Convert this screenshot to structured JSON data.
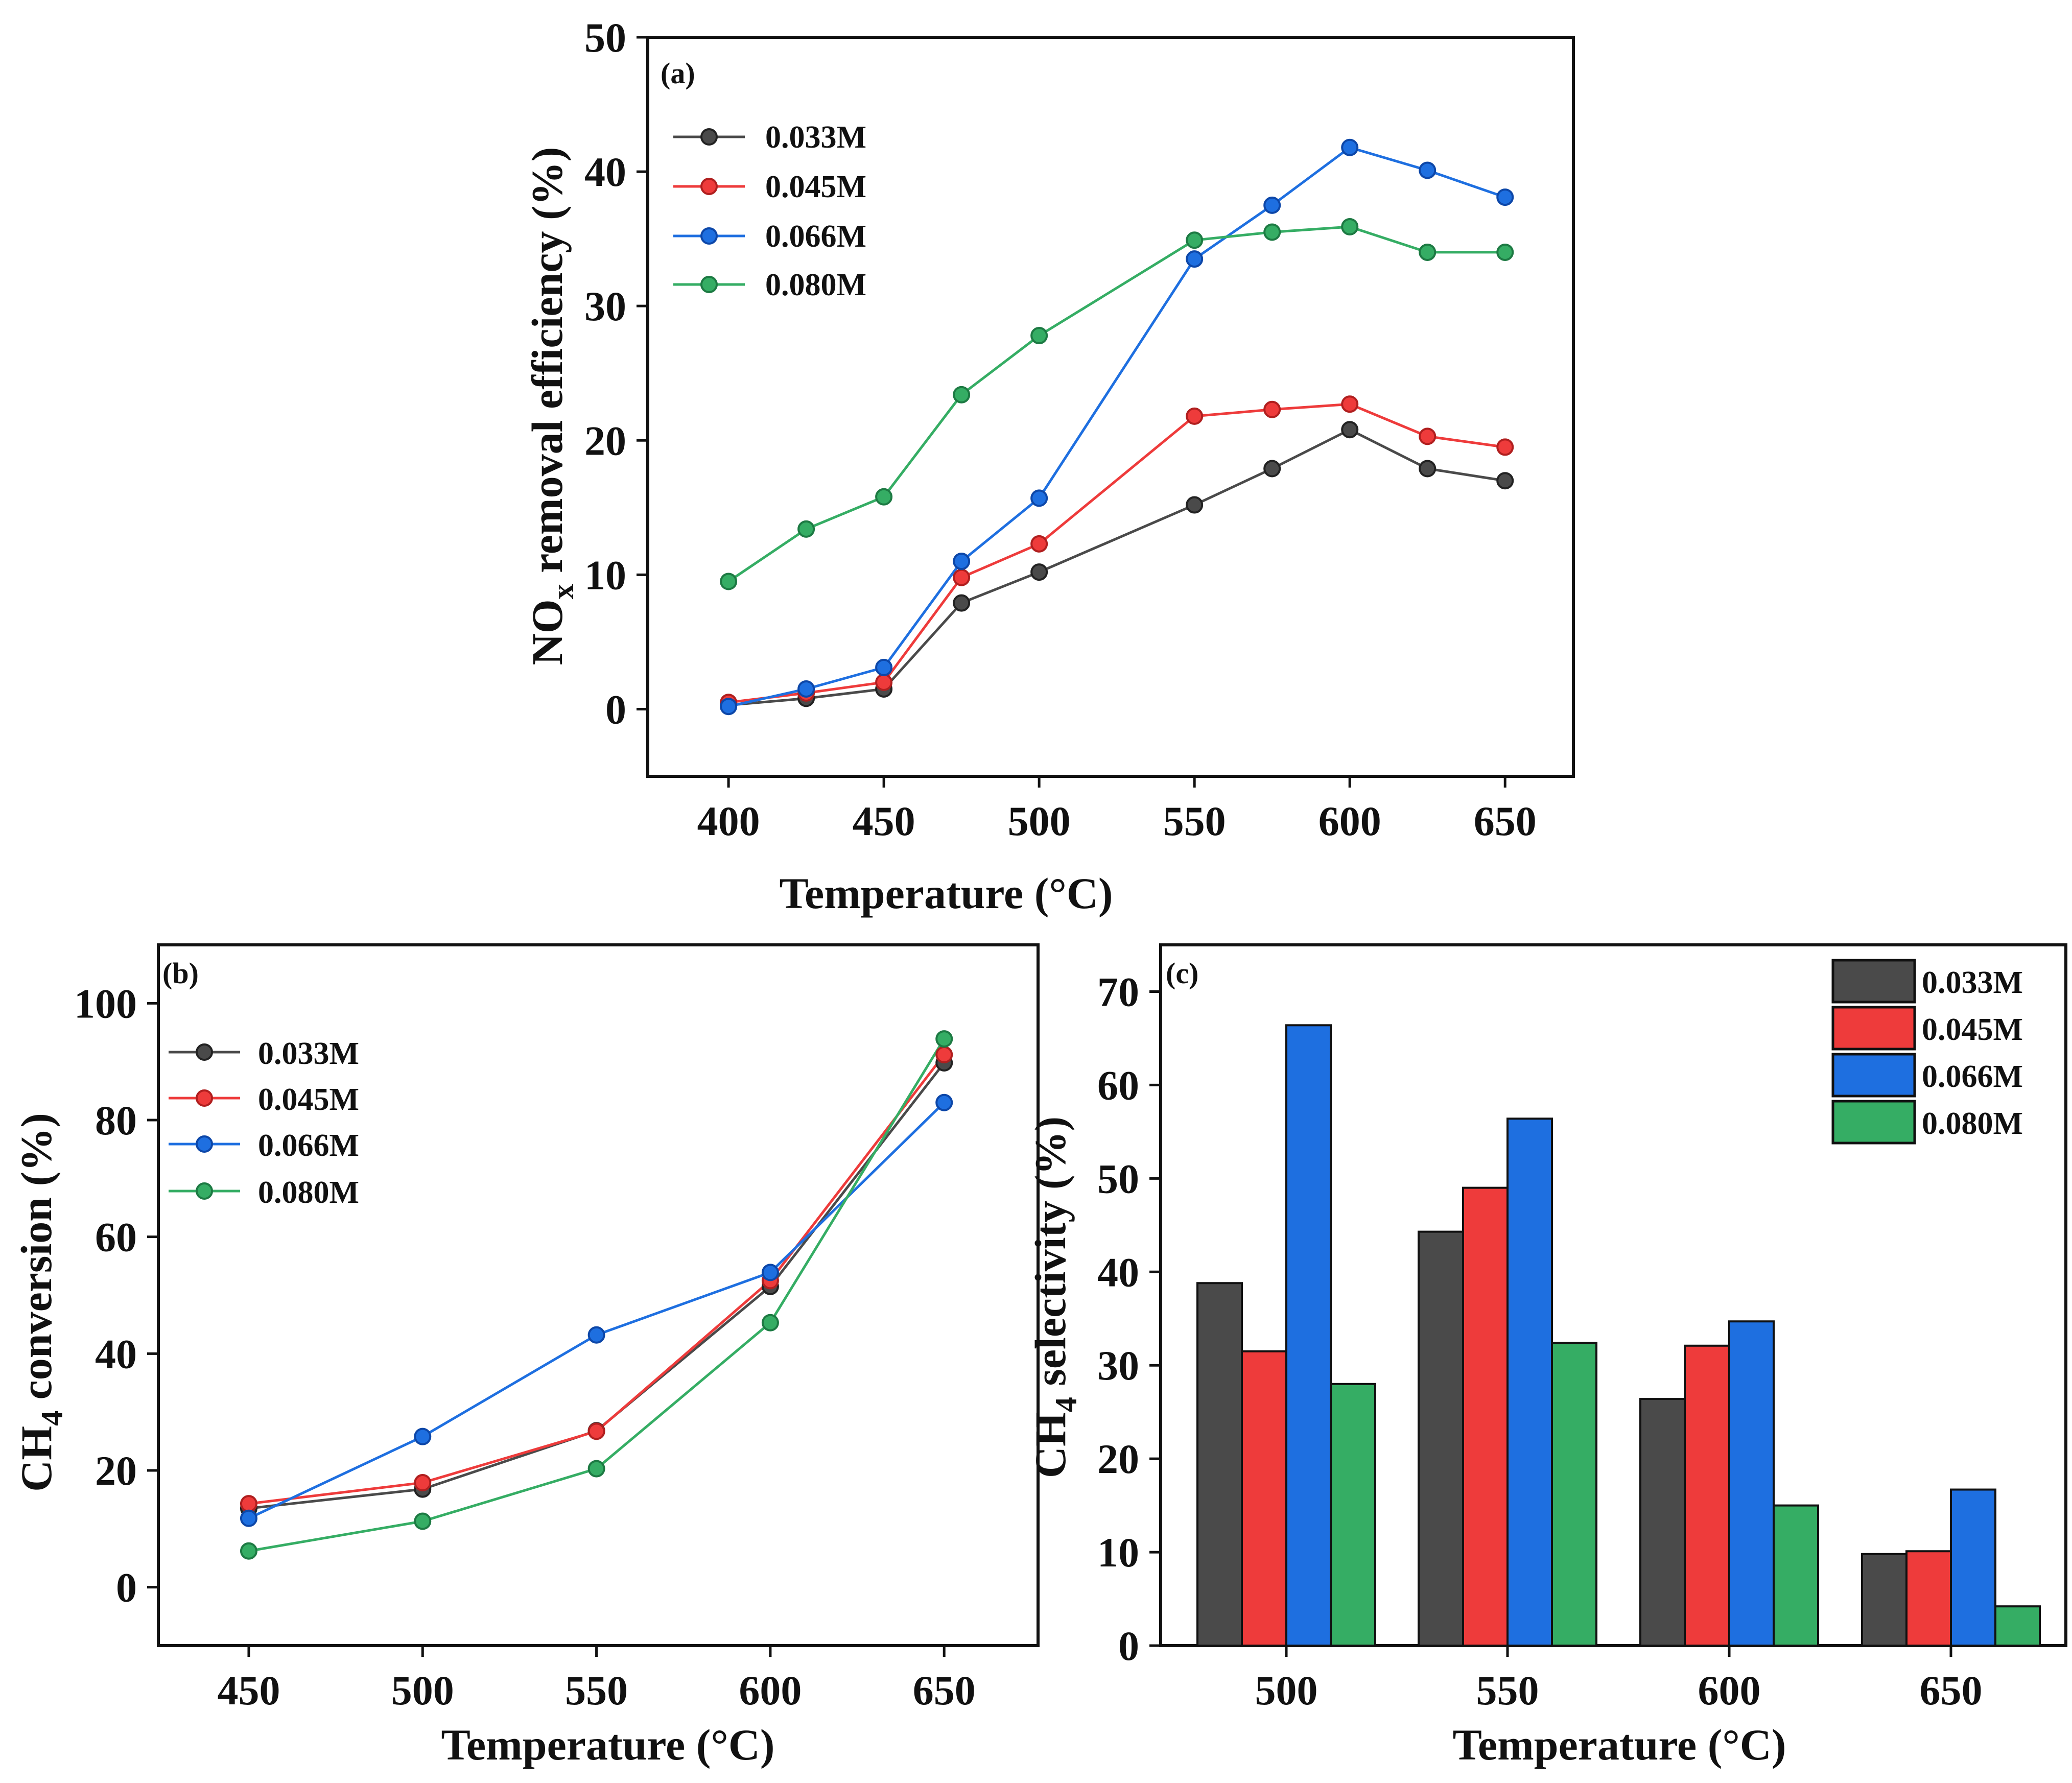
{
  "colors": {
    "0.033M": "#4a4a4a",
    "0.045M": "#ee3b3b",
    "0.066M": "#1e6fe0",
    "0.080M": "#35ad64",
    "axis": "#111111",
    "marker_edge_033": "#222222",
    "marker_edge_045": "#b01f1f",
    "marker_edge_066": "#0d47a8",
    "marker_edge_080": "#1d7a43"
  },
  "chart_data": [
    {
      "id": "a",
      "label": "(a)",
      "type": "line",
      "xlabel": "Temperature (°C)",
      "ylabel_main": "NO",
      "ylabel_sub": "x",
      "ylabel_rest": " removal efficiency (%)",
      "xlim": [
        374,
        672
      ],
      "ylim": [
        -5,
        50
      ],
      "xticks": [
        400,
        450,
        500,
        550,
        600,
        650
      ],
      "yticks": [
        0,
        10,
        20,
        30,
        40,
        50
      ],
      "xtick_labels": [
        "400",
        "450",
        "500",
        "550",
        "600",
        "650"
      ],
      "ytick_labels": [
        "0",
        "10",
        "20",
        "30",
        "40",
        "50"
      ],
      "x": [
        400,
        425,
        450,
        475,
        500,
        550,
        575,
        600,
        625,
        650
      ],
      "series": [
        {
          "name": "0.033M",
          "values": [
            0.3,
            0.8,
            1.5,
            7.9,
            10.2,
            15.2,
            17.9,
            20.8,
            17.9,
            17.0
          ]
        },
        {
          "name": "0.045M",
          "values": [
            0.5,
            1.2,
            2.0,
            9.8,
            12.3,
            21.8,
            22.3,
            22.7,
            20.3,
            19.5
          ]
        },
        {
          "name": "0.066M",
          "values": [
            0.2,
            1.5,
            3.1,
            11.0,
            15.7,
            33.5,
            37.5,
            41.8,
            40.1,
            38.1
          ]
        },
        {
          "name": "0.080M",
          "values": [
            9.5,
            13.4,
            15.8,
            23.4,
            27.8,
            34.9,
            35.5,
            35.9,
            34.0,
            34.0
          ]
        }
      ]
    },
    {
      "id": "b",
      "label": "(b)",
      "type": "line",
      "xlabel": "Temperature (°C)",
      "ylabel_main": "CH",
      "ylabel_sub": "4",
      "ylabel_rest": " conversion (%)",
      "xlim": [
        424,
        677
      ],
      "ylim": [
        -10,
        110
      ],
      "xticks": [
        450,
        500,
        550,
        600,
        650
      ],
      "yticks": [
        0,
        20,
        40,
        60,
        80,
        100
      ],
      "xtick_labels": [
        "450",
        "500",
        "550",
        "600",
        "650"
      ],
      "ytick_labels": [
        "0",
        "20",
        "40",
        "60",
        "80",
        "100"
      ],
      "x": [
        450,
        500,
        550,
        600,
        650
      ],
      "series": [
        {
          "name": "0.033M",
          "values": [
            13.5,
            16.8,
            26.8,
            51.5,
            89.8
          ]
        },
        {
          "name": "0.045M",
          "values": [
            14.3,
            17.9,
            26.7,
            52.5,
            91.2
          ]
        },
        {
          "name": "0.066M",
          "values": [
            11.8,
            25.8,
            43.2,
            53.9,
            83.0
          ]
        },
        {
          "name": "0.080M",
          "values": [
            6.2,
            11.3,
            20.3,
            45.3,
            93.9
          ]
        }
      ]
    },
    {
      "id": "c",
      "label": "(c)",
      "type": "bar",
      "xlabel": "Temperature (°C)",
      "ylabel_main": "CH",
      "ylabel_sub": "4",
      "ylabel_rest": " selectivity (%)",
      "categories": [
        "500",
        "550",
        "600",
        "650"
      ],
      "ylim": [
        0,
        75
      ],
      "yticks": [
        0,
        10,
        20,
        30,
        40,
        50,
        60,
        70
      ],
      "ytick_labels": [
        "0",
        "10",
        "20",
        "30",
        "40",
        "50",
        "60",
        "70"
      ],
      "series": [
        {
          "name": "0.033M",
          "values": [
            38.8,
            44.3,
            26.4,
            9.8
          ]
        },
        {
          "name": "0.045M",
          "values": [
            31.5,
            49.0,
            32.1,
            10.1
          ]
        },
        {
          "name": "0.066M",
          "values": [
            66.4,
            56.4,
            34.7,
            16.7
          ]
        },
        {
          "name": "0.080M",
          "values": [
            28.0,
            32.4,
            15.0,
            4.2
          ]
        }
      ]
    }
  ]
}
